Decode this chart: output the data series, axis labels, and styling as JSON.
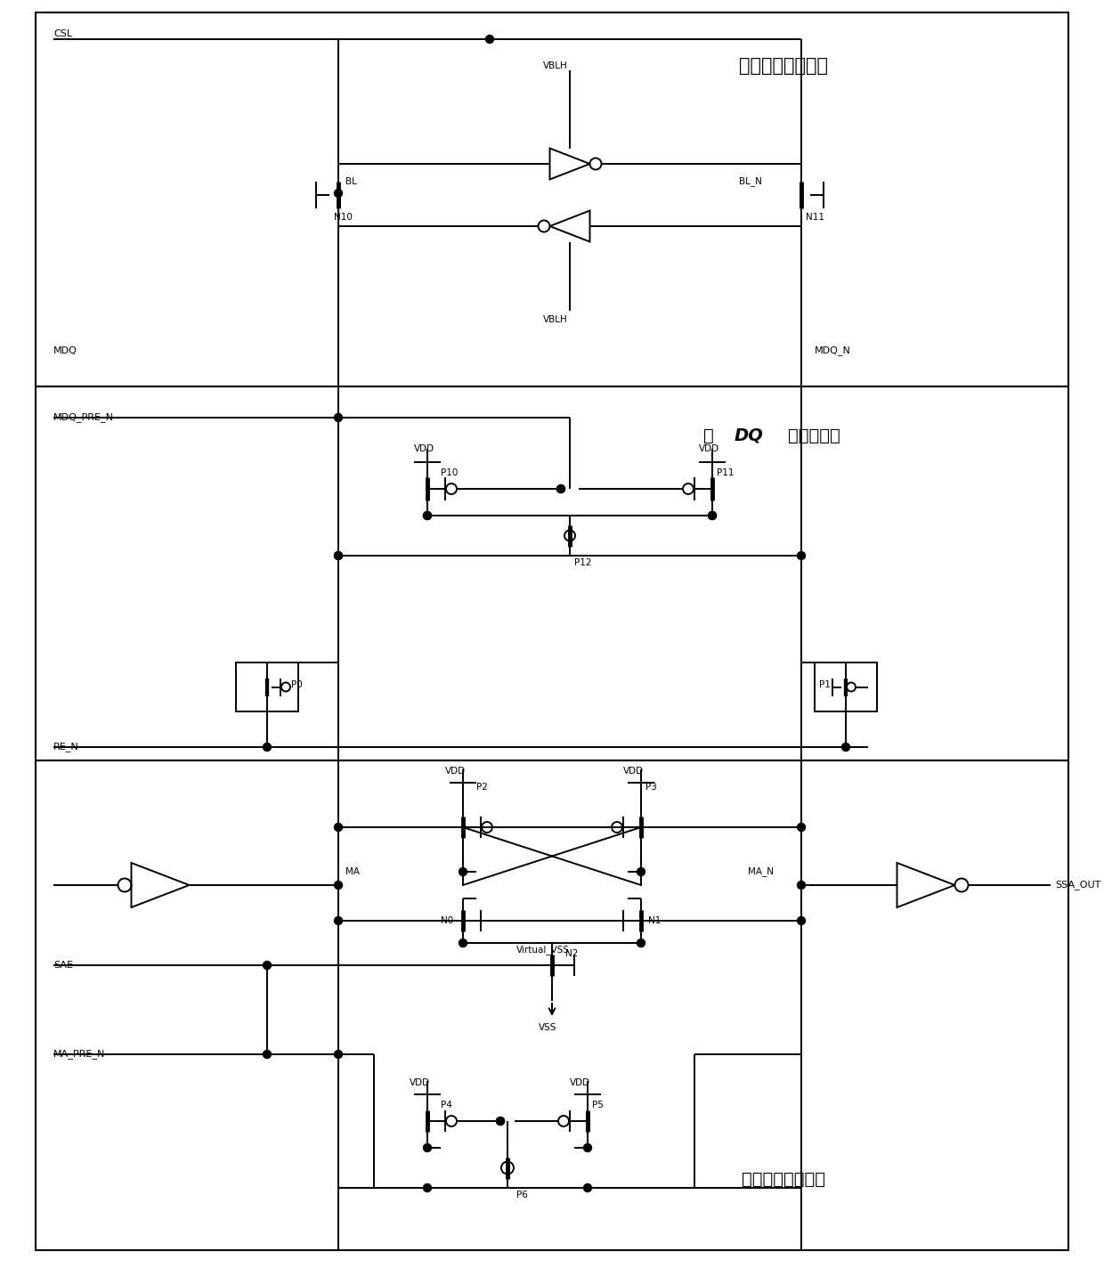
{
  "bg_color": "#ffffff",
  "section1_label": "第一级灵敏放大器",
  "section2_label": "主DQ读控制电路",
  "section3_label": "第二级灵敏放大器",
  "section2_label_bold": "DQ",
  "figsize": [
    12.4,
    14.24
  ],
  "dpi": 100
}
